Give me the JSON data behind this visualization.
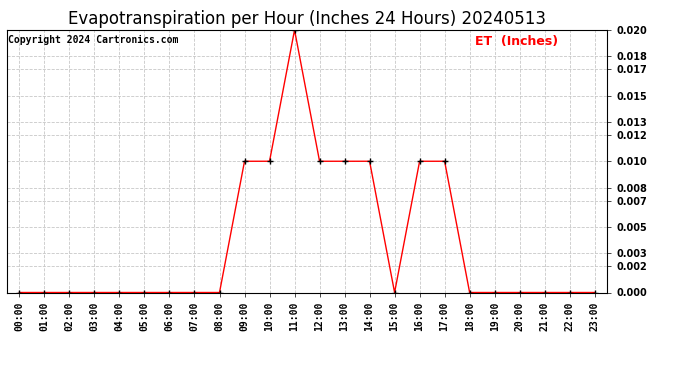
{
  "title": "Evapotranspiration per Hour (Inches 24 Hours) 20240513",
  "copyright": "Copyright 2024 Cartronics.com",
  "legend_label": "ET  (Inches)",
  "x_labels": [
    "00:00",
    "01:00",
    "02:00",
    "03:00",
    "04:00",
    "05:00",
    "06:00",
    "07:00",
    "08:00",
    "09:00",
    "10:00",
    "11:00",
    "12:00",
    "13:00",
    "14:00",
    "15:00",
    "16:00",
    "17:00",
    "18:00",
    "19:00",
    "20:00",
    "21:00",
    "22:00",
    "23:00"
  ],
  "y_values": [
    0.0,
    0.0,
    0.0,
    0.0,
    0.0,
    0.0,
    0.0,
    0.0,
    0.0,
    0.01,
    0.01,
    0.02,
    0.01,
    0.01,
    0.01,
    0.0,
    0.01,
    0.01,
    0.0,
    0.0,
    0.0,
    0.0,
    0.0,
    0.0
  ],
  "line_color": "#ff0000",
  "marker": "+",
  "marker_color": "#000000",
  "background_color": "#ffffff",
  "grid_color": "#c8c8c8",
  "ylim": [
    0.0,
    0.02
  ],
  "yticks": [
    0.0,
    0.002,
    0.003,
    0.005,
    0.007,
    0.008,
    0.01,
    0.012,
    0.013,
    0.015,
    0.017,
    0.018,
    0.02
  ],
  "title_fontsize": 12,
  "copyright_fontsize": 7,
  "legend_fontsize": 9,
  "axis_fontsize": 7
}
